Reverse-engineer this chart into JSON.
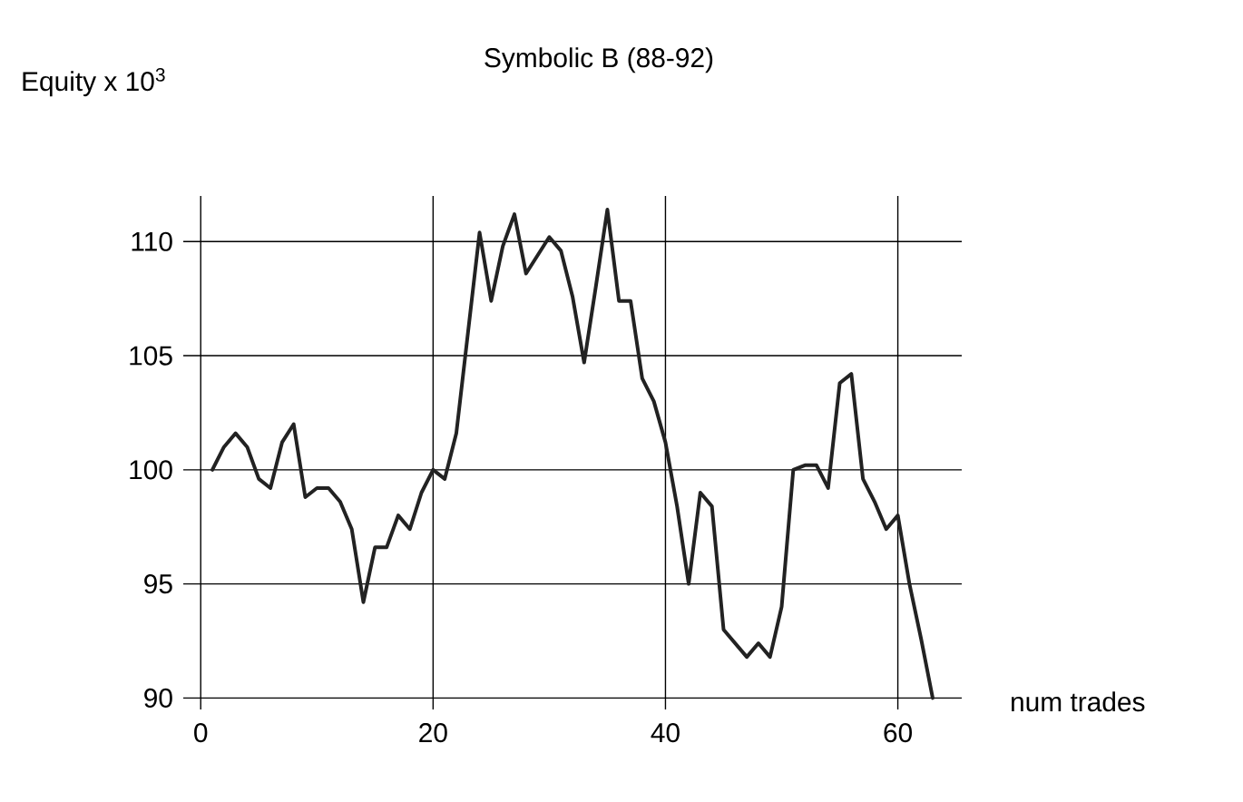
{
  "chart_data": {
    "type": "line",
    "title": "Symbolic B (88-92)",
    "ylabel": "Equity x 10$^{3}$",
    "xlabel": "num trades",
    "xlim": [
      -1.5,
      65.5
    ],
    "ylim": [
      89.5,
      112
    ],
    "xticks": [
      0,
      20,
      40,
      60
    ],
    "yticks": [
      90,
      95,
      100,
      105,
      110
    ],
    "grid": true,
    "color": "#222222",
    "x": [
      1,
      2,
      3,
      4,
      5,
      6,
      7,
      8,
      9,
      10,
      11,
      12,
      13,
      14,
      15,
      16,
      17,
      18,
      19,
      20,
      21,
      22,
      23,
      24,
      25,
      26,
      27,
      28,
      29,
      30,
      31,
      32,
      33,
      34,
      35,
      36,
      37,
      38,
      39,
      40,
      41,
      42,
      43,
      44,
      45,
      46,
      47,
      48,
      49,
      50,
      51,
      52,
      53,
      54,
      55,
      56,
      57,
      58,
      59,
      60,
      61,
      62,
      63
    ],
    "values": [
      100,
      101,
      101.6,
      101,
      99.6,
      99.2,
      101.2,
      102,
      98.8,
      99.2,
      99.2,
      98.6,
      97.4,
      94.2,
      96.6,
      96.6,
      98,
      97.4,
      99,
      100,
      99.6,
      101.6,
      106,
      110.4,
      107.4,
      109.8,
      111.2,
      108.6,
      109.4,
      110.2,
      109.6,
      107.6,
      104.7,
      108,
      111.4,
      107.4,
      107.4,
      104,
      103,
      101.2,
      98.4,
      95,
      99,
      98.4,
      93,
      92.4,
      91.8,
      92.4,
      91.8,
      94,
      100,
      100.2,
      100.2,
      99.2,
      103.8,
      104.2,
      99.6,
      98.6,
      97.4,
      98,
      95,
      92.6,
      90
    ]
  }
}
